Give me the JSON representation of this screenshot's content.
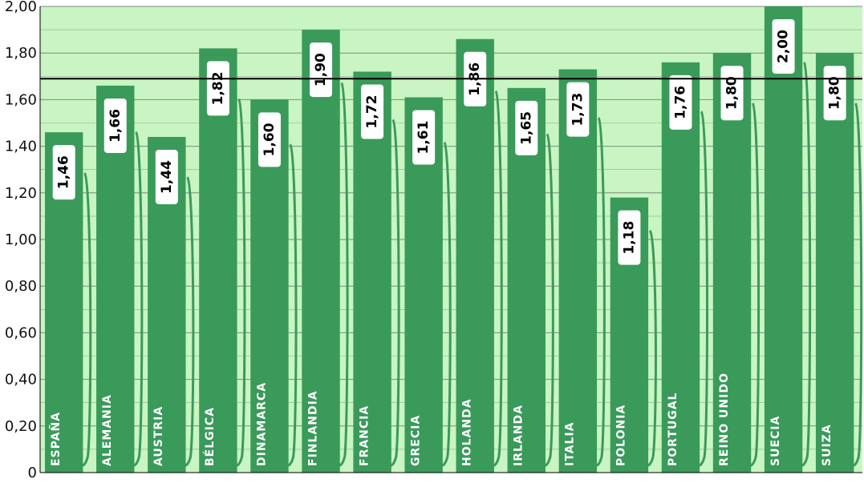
{
  "chart_data": {
    "type": "bar",
    "categories": [
      "ESPAÑA",
      "ALEMANIA",
      "AUSTRIA",
      "BÉLGICA",
      "DINAMARCA",
      "FINLANDIA",
      "FRANCIA",
      "GRECIA",
      "HOLANDA",
      "IRLANDA",
      "ITALIA",
      "POLONIA",
      "PORTUGAL",
      "REINO UNIDO",
      "SUECIA",
      "SUIZA"
    ],
    "values": [
      1.46,
      1.66,
      1.44,
      1.82,
      1.6,
      1.9,
      1.72,
      1.61,
      1.86,
      1.65,
      1.73,
      1.18,
      1.76,
      1.8,
      2.0,
      1.8
    ],
    "data_labels": [
      "1,46",
      "1,66",
      "1,44",
      "1,82",
      "1,60",
      "1,90",
      "1,72",
      "1,61",
      "1,86",
      "1,65",
      "1,73",
      "1,18",
      "1,76",
      "1,80",
      "2,00",
      "1,80"
    ],
    "yticks": [
      0,
      0.2,
      0.4,
      0.6,
      0.8,
      1.0,
      1.2,
      1.4,
      1.6,
      1.8,
      2.0
    ],
    "ytick_labels": [
      "0",
      "0,20",
      "0,40",
      "0,60",
      "0,80",
      "1,00",
      "1,20",
      "1,40",
      "1,60",
      "1,80",
      "2,00"
    ],
    "ylim": [
      0,
      2.0
    ],
    "reference_line": 1.69,
    "title": "",
    "xlabel": "",
    "ylabel": "",
    "grid": true,
    "legend": "none",
    "colors": {
      "bar": "#3a9a5a",
      "plot_background": "#c8f5c2",
      "gridline": "#7a8c7a",
      "reference_line": "#000000",
      "label_box": "#ffffff"
    }
  }
}
